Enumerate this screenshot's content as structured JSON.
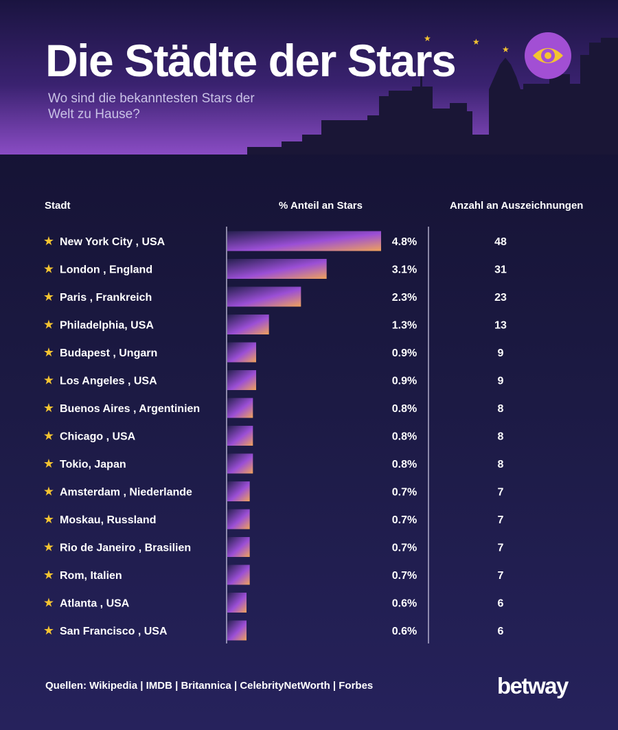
{
  "title": "Die Städte der Stars",
  "subtitle": "Wo sind die bekanntesten Stars der Welt zu Hause?",
  "columns": {
    "city": "Stadt",
    "share": "% Anteil an Stars",
    "awards": "Anzahl an Auszeichnungen"
  },
  "footer": "Quellen: Wikipedia | IMDB | Britannica | CelebrityNetWorth | Forbes",
  "brand": "betway",
  "icons": {
    "row_marker": "star-icon",
    "badge": "eye-icon"
  },
  "colors": {
    "background": "#1c1a44",
    "accent_purple": "#9b4fd6",
    "accent_orange": "#f0a35a",
    "star_yellow": "#f4c431",
    "eye_badge": "#a24fd4"
  },
  "chart_data": {
    "type": "bar",
    "orientation": "horizontal",
    "title": "Die Städte der Stars",
    "subtitle": "Wo sind die bekanntesten Stars der Welt zu Hause?",
    "xlim": [
      0,
      4.8
    ],
    "grid": false,
    "categories": [
      "New York City , USA",
      "London , England",
      "Paris , Frankreich",
      "Philadelphia, USA",
      "Budapest , Ungarn",
      "Los Angeles , USA",
      "Buenos Aires , Argentinien",
      "Chicago , USA",
      "Tokio, Japan",
      "Amsterdam , Niederlande",
      "Moskau, Russland",
      "Rio de Janeiro , Brasilien",
      "Rom, Italien",
      "Atlanta , USA",
      "San Francisco , USA"
    ],
    "values": [
      4.8,
      3.1,
      2.3,
      1.3,
      0.9,
      0.9,
      0.8,
      0.8,
      0.8,
      0.7,
      0.7,
      0.7,
      0.7,
      0.6,
      0.6
    ],
    "value_labels": [
      "4.8%",
      "3.1%",
      "2.3%",
      "1.3%",
      "0.9%",
      "0.9%",
      "0.8%",
      "0.8%",
      "0.8%",
      "0.7%",
      "0.7%",
      "0.7%",
      "0.7%",
      "0.6%",
      "0.6%"
    ],
    "awards": [
      48,
      31,
      23,
      13,
      9,
      9,
      8,
      8,
      8,
      7,
      7,
      7,
      7,
      6,
      6
    ]
  }
}
